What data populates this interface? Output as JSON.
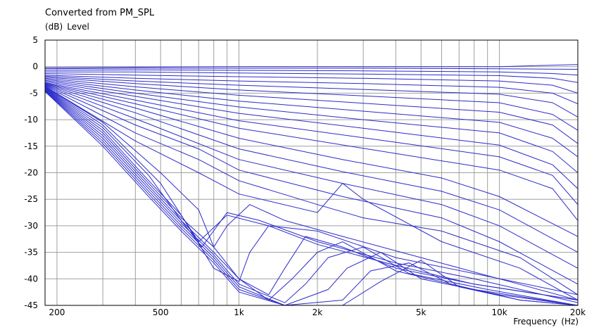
{
  "chart_data": {
    "type": "line",
    "title": "Converted from PM_SPL",
    "ylabel_unit": "(dB)",
    "ylabel": "Level",
    "xlabel": "Frequency",
    "xlabel_unit": "(Hz)",
    "x_scale": "log",
    "xlim": [
      180,
      20000
    ],
    "ylim": [
      -45,
      5
    ],
    "y_ticks": [
      5,
      0,
      -5,
      -10,
      -15,
      -20,
      -25,
      -30,
      -35,
      -40,
      -45
    ],
    "x_ticks": [
      {
        "value": 200,
        "label": "200"
      },
      {
        "value": 500,
        "label": "500"
      },
      {
        "value": 1000,
        "label": "1k"
      },
      {
        "value": 2000,
        "label": "2k"
      },
      {
        "value": 5000,
        "label": "5k"
      },
      {
        "value": 10000,
        "label": "10k"
      },
      {
        "value": 20000,
        "label": "20k"
      }
    ],
    "grid": true,
    "line_color": "#2b2bcc",
    "series": [
      {
        "x": [
          180,
          400,
          1000,
          3000,
          10000,
          20000
        ],
        "y": [
          -0.2,
          -0.1,
          0.0,
          0.0,
          0.0,
          0.4
        ]
      },
      {
        "x": [
          180,
          400,
          1000,
          3000,
          10000,
          20000
        ],
        "y": [
          -0.4,
          -0.3,
          -0.3,
          -0.3,
          -0.4,
          -0.5
        ]
      },
      {
        "x": [
          180,
          400,
          1000,
          3000,
          10000,
          16000,
          20000
        ],
        "y": [
          -0.7,
          -0.6,
          -0.7,
          -0.8,
          -1.0,
          -1.3,
          -1.6
        ]
      },
      {
        "x": [
          180,
          400,
          1000,
          3000,
          10000,
          16000,
          20000
        ],
        "y": [
          -1.0,
          -1.0,
          -1.2,
          -1.4,
          -1.7,
          -2.2,
          -3.0
        ]
      },
      {
        "x": [
          180,
          400,
          1000,
          3000,
          10000,
          16000,
          20000
        ],
        "y": [
          -1.3,
          -1.6,
          -1.9,
          -2.2,
          -2.7,
          -3.5,
          -5.0
        ]
      },
      {
        "x": [
          180,
          400,
          1000,
          3000,
          10000,
          16000,
          20000
        ],
        "y": [
          -1.6,
          -2.2,
          -2.7,
          -3.2,
          -3.9,
          -5.0,
          -7.0
        ]
      },
      {
        "x": [
          180,
          400,
          1000,
          3000,
          10000,
          16000,
          20000
        ],
        "y": [
          -1.8,
          -2.7,
          -3.5,
          -4.3,
          -5.2,
          -6.8,
          -9.5
        ]
      },
      {
        "x": [
          180,
          400,
          1000,
          3000,
          10000,
          16000,
          20000
        ],
        "y": [
          -2.0,
          -3.2,
          -4.4,
          -5.5,
          -6.8,
          -9.0,
          -12.0
        ]
      },
      {
        "x": [
          180,
          400,
          1000,
          3000,
          10000,
          16000,
          20000
        ],
        "y": [
          -2.2,
          -3.8,
          -5.4,
          -6.9,
          -8.6,
          -11.0,
          -14.5
        ]
      },
      {
        "x": [
          180,
          400,
          1000,
          3000,
          10000,
          16000,
          20000
        ],
        "y": [
          -2.4,
          -4.4,
          -6.5,
          -8.4,
          -10.5,
          -13.5,
          -17.0
        ]
      },
      {
        "x": [
          180,
          400,
          1000,
          3000,
          10000,
          16000,
          20000
        ],
        "y": [
          -2.6,
          -5.0,
          -7.6,
          -10.0,
          -12.5,
          -16.0,
          -20.0
        ]
      },
      {
        "x": [
          180,
          400,
          1000,
          3000,
          10000,
          16000,
          20000
        ],
        "y": [
          -2.8,
          -5.6,
          -8.8,
          -11.6,
          -14.8,
          -18.5,
          -23.0
        ]
      },
      {
        "x": [
          180,
          400,
          1000,
          3000,
          10000,
          16000,
          20000
        ],
        "y": [
          -3.0,
          -6.3,
          -10.2,
          -13.4,
          -17.0,
          -20.5,
          -26.0
        ]
      },
      {
        "x": [
          180,
          400,
          1000,
          3000,
          10000,
          16000,
          20000
        ],
        "y": [
          -3.1,
          -7.0,
          -11.6,
          -15.4,
          -19.5,
          -23.0,
          -29.0
        ]
      },
      {
        "x": [
          180,
          400,
          1000,
          2500,
          6000,
          10000,
          20000
        ],
        "y": [
          -3.2,
          -7.8,
          -13.5,
          -17.5,
          -21.0,
          -24.5,
          -32.0
        ]
      },
      {
        "x": [
          180,
          400,
          1000,
          2500,
          6000,
          10000,
          20000
        ],
        "y": [
          -3.3,
          -8.7,
          -15.5,
          -19.8,
          -23.5,
          -27.0,
          -35.0
        ]
      },
      {
        "x": [
          180,
          400,
          1000,
          2500,
          6000,
          10000,
          20000
        ],
        "y": [
          -3.4,
          -9.8,
          -17.5,
          -22.0,
          -26.0,
          -30.0,
          -38.0
        ]
      },
      {
        "x": [
          180,
          400,
          700,
          1000,
          2500,
          6000,
          10000,
          20000
        ],
        "y": [
          -3.5,
          -11.0,
          -15.5,
          -19.5,
          -24.5,
          -28.5,
          -33.0,
          -41.0
        ]
      },
      {
        "x": [
          180,
          400,
          700,
          1000,
          2000,
          3000,
          6000,
          12000,
          20000
        ],
        "y": [
          -3.6,
          -12.5,
          -17.5,
          -21.5,
          -26.0,
          -28.5,
          -31.0,
          -36.0,
          -43.0
        ]
      },
      {
        "x": [
          180,
          400,
          700,
          1000,
          2000,
          2500,
          3000,
          6000,
          12000,
          20000
        ],
        "y": [
          -3.7,
          -14.0,
          -20.0,
          -24.0,
          -27.5,
          -22.0,
          -25.0,
          -33.0,
          -38.0,
          -44.0
        ]
      },
      {
        "x": [
          180,
          300,
          500,
          700,
          800,
          900,
          1100,
          1500,
          2500,
          5000,
          10000,
          20000
        ],
        "y": [
          -3.8,
          -10.5,
          -20.0,
          -27.0,
          -34.0,
          -30.0,
          -26.0,
          -29.0,
          -32.0,
          -36.0,
          -40.0,
          -44.0
        ]
      },
      {
        "x": [
          180,
          300,
          500,
          600,
          700,
          900,
          1300,
          2000,
          4000,
          8000,
          20000
        ],
        "y": [
          -3.9,
          -11.0,
          -22.0,
          -28.0,
          -33.0,
          -28.0,
          -30.0,
          -31.0,
          -36.0,
          -39.0,
          -43.0
        ]
      },
      {
        "x": [
          180,
          300,
          450,
          600,
          720,
          900,
          1200,
          2000,
          4000,
          8000,
          20000
        ],
        "y": [
          -4.0,
          -11.5,
          -20.5,
          -29.0,
          -34.0,
          -27.5,
          -29.0,
          -33.0,
          -37.0,
          -40.0,
          -44.5
        ]
      },
      {
        "x": [
          180,
          300,
          450,
          600,
          800,
          1000,
          1100,
          1300,
          2000,
          4000,
          8000,
          20000
        ],
        "y": [
          -4.1,
          -12.0,
          -21.5,
          -28.0,
          -38.0,
          -40.5,
          -35.0,
          -30.0,
          -33.5,
          -37.5,
          -41.0,
          -44.0
        ]
      },
      {
        "x": [
          180,
          300,
          450,
          600,
          800,
          1000,
          1300,
          1500,
          1800,
          2500,
          4000,
          8000,
          20000
        ],
        "y": [
          -4.2,
          -12.5,
          -22.0,
          -28.5,
          -34.0,
          -40.0,
          -43.0,
          -38.0,
          -32.0,
          -34.0,
          -38.0,
          -41.0,
          -44.0
        ]
      },
      {
        "x": [
          180,
          300,
          450,
          600,
          800,
          1000,
          1300,
          1600,
          2000,
          2500,
          4000,
          8000,
          20000
        ],
        "y": [
          -4.3,
          -13.0,
          -22.5,
          -29.0,
          -35.0,
          -40.0,
          -44.0,
          -40.0,
          -35.0,
          -33.0,
          -38.5,
          -42.0,
          -45.0
        ]
      },
      {
        "x": [
          180,
          300,
          450,
          600,
          800,
          1000,
          1500,
          1800,
          2200,
          3000,
          4500,
          9000,
          20000
        ],
        "y": [
          -4.4,
          -13.5,
          -23.0,
          -29.5,
          -35.5,
          -41.0,
          -44.5,
          -41.0,
          -36.0,
          -34.0,
          -39.0,
          -42.0,
          -45.0
        ]
      },
      {
        "x": [
          180,
          300,
          450,
          600,
          800,
          1000,
          1500,
          2200,
          2600,
          3500,
          5000,
          10000,
          20000
        ],
        "y": [
          -4.5,
          -14.0,
          -23.5,
          -30.0,
          -36.0,
          -41.5,
          -45.0,
          -42.0,
          -38.0,
          -35.0,
          -40.0,
          -43.0,
          -45.0
        ]
      },
      {
        "x": [
          180,
          300,
          450,
          600,
          800,
          1000,
          1500,
          2500,
          3200,
          4500,
          6500,
          12000,
          20000
        ],
        "y": [
          -4.6,
          -14.5,
          -24.0,
          -30.5,
          -36.5,
          -42.0,
          -45.0,
          -44.0,
          -38.5,
          -37.0,
          -41.0,
          -44.0,
          -45.0
        ]
      },
      {
        "x": [
          180,
          300,
          450,
          600,
          800,
          1000,
          1500,
          2500,
          3500,
          5000,
          7000,
          12000,
          20000
        ],
        "y": [
          -4.7,
          -15.0,
          -24.5,
          -31.0,
          -37.0,
          -42.5,
          -45.0,
          -45.0,
          -40.5,
          -36.5,
          -41.5,
          -44.0,
          -45.0
        ]
      }
    ]
  }
}
